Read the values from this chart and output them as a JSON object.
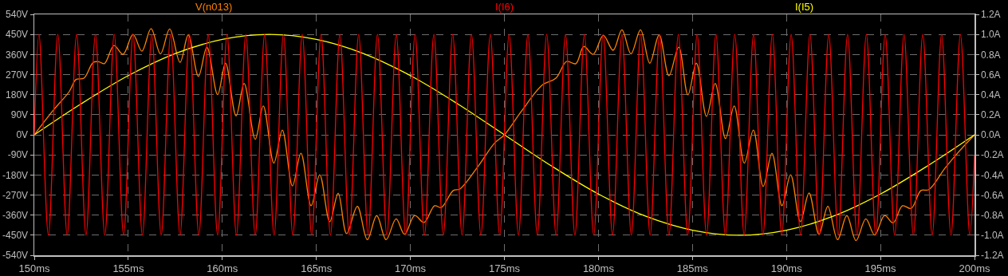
{
  "chart_data": {
    "type": "line",
    "line_style": "solid",
    "marker": "none",
    "grid": true,
    "xlim": [
      150,
      200
    ],
    "xticks": [
      {
        "value": 150,
        "label": "150ms"
      },
      {
        "value": 155,
        "label": "155ms"
      },
      {
        "value": 160,
        "label": "160ms"
      },
      {
        "value": 165,
        "label": "165ms"
      },
      {
        "value": 170,
        "label": "170ms"
      },
      {
        "value": 175,
        "label": "175ms"
      },
      {
        "value": 180,
        "label": "180ms"
      },
      {
        "value": 185,
        "label": "185ms"
      },
      {
        "value": 190,
        "label": "190ms"
      },
      {
        "value": 195,
        "label": "195ms"
      },
      {
        "value": 200,
        "label": "200ms"
      }
    ],
    "ylim": [
      -540,
      540
    ],
    "yticks": [
      {
        "value": 540,
        "label": "540V"
      },
      {
        "value": 450,
        "label": "450V"
      },
      {
        "value": 360,
        "label": "360V"
      },
      {
        "value": 270,
        "label": "270V"
      },
      {
        "value": 180,
        "label": "180V"
      },
      {
        "value": 90,
        "label": "90V"
      },
      {
        "value": 0,
        "label": "0V"
      },
      {
        "value": -90,
        "label": "-90V"
      },
      {
        "value": -180,
        "label": "-180V"
      },
      {
        "value": -270,
        "label": "-270V"
      },
      {
        "value": -360,
        "label": "-360V"
      },
      {
        "value": -450,
        "label": "-450V"
      },
      {
        "value": -540,
        "label": "-540V"
      }
    ],
    "y2lim": [
      -1.2,
      1.2
    ],
    "y2ticks": [
      {
        "value": 1.2,
        "label": "1.2A"
      },
      {
        "value": 1.0,
        "label": "1.0A"
      },
      {
        "value": 0.8,
        "label": "0.8A"
      },
      {
        "value": 0.6,
        "label": "0.6A"
      },
      {
        "value": 0.4,
        "label": "0.4A"
      },
      {
        "value": 0.2,
        "label": "0.2A"
      },
      {
        "value": 0,
        "label": "0.0A"
      },
      {
        "value": -0.2,
        "label": "-0.2A"
      },
      {
        "value": -0.4,
        "label": "-0.4A"
      },
      {
        "value": -0.6,
        "label": "-0.6A"
      },
      {
        "value": -0.8,
        "label": "-0.8A"
      },
      {
        "value": -1.0,
        "label": "-1.0A"
      },
      {
        "value": -1.2,
        "label": "-1.2A"
      }
    ],
    "series": [
      {
        "name": "V(n013)",
        "color": "#ff8000",
        "x": [
          150,
          151.02,
          151.86,
          152.22,
          152.64,
          153.14,
          153.45,
          153.73,
          154.24,
          154.72,
          155.25,
          155.72,
          156.21,
          156.71,
          157.2,
          157.75,
          158.19,
          158.73,
          159.18,
          159.75,
          160.17,
          160.73,
          161.16,
          161.75,
          162.18,
          162.74,
          163.19,
          163.73,
          164.18,
          164.72,
          165.18,
          165.71,
          166.16,
          166.61,
          167.18,
          167.71,
          168.21,
          168.71,
          169.24,
          169.69,
          170.23,
          170.72,
          171.29,
          171.64,
          172.28,
          172.63,
          173.62,
          174.47,
          175,
          175.9,
          177.03,
          177.74,
          178.31,
          178.8,
          179.22,
          179.72,
          180.26,
          180.78,
          181.25,
          181.73,
          182.24,
          182.73,
          183.23,
          183.75,
          184.27,
          184.76,
          185.21,
          185.75,
          186.21,
          186.76,
          187.22,
          187.76,
          188.24,
          188.76,
          189.23,
          189.76,
          190.22,
          190.74,
          191.2,
          191.73,
          192.2,
          192.72,
          193.21,
          193.7,
          194.22,
          194.69,
          195.22,
          195.67,
          196.17,
          196.63,
          197.15,
          197.57,
          198.42,
          199.12,
          200
        ],
        "values": [
          0,
          111,
          194,
          248,
          254,
          325,
          327,
          319,
          400,
          361,
          450,
          375,
          476,
          363,
          474,
          325,
          448,
          262,
          393,
          180,
          321,
          85,
          230,
          -20,
          129,
          -127,
          21,
          -229,
          -83,
          -318,
          -179,
          -389,
          -262,
          -443,
          -321,
          -470,
          -362,
          -470,
          -377,
          -446,
          -362,
          -393,
          -318,
          -326,
          -250,
          -243,
          -139,
          -38,
          0,
          105,
          224,
          254,
          329,
          319,
          396,
          361,
          446,
          379,
          471,
          363,
          471,
          321,
          448,
          265,
          393,
          179,
          321,
          83,
          230,
          -17,
          129,
          -127,
          21,
          -231,
          -83,
          -318,
          -179,
          -389,
          -261,
          -446,
          -321,
          -470,
          -362,
          -474,
          -377,
          -449,
          -362,
          -395,
          -318,
          -330,
          -250,
          -246,
          -151,
          -80,
          0
        ]
      },
      {
        "name": "I(I6)",
        "color": "#ff0000",
        "axis": "y2",
        "x": [
          150,
          150.25,
          150.75,
          151.25,
          151.75,
          152.25,
          152.75,
          153.25,
          153.75,
          154.25,
          154.75,
          155.25,
          155.75,
          156.25,
          156.75,
          157.25,
          157.75,
          158.25,
          158.75,
          159.25,
          159.75,
          160.25,
          160.75,
          161.25,
          161.75,
          162.25,
          162.75,
          163.25,
          163.75,
          164.25,
          164.75,
          165.25,
          165.75,
          166.25,
          166.75,
          167.25,
          167.75,
          168.25,
          168.75,
          169.25,
          169.75,
          170.25,
          170.75,
          171.25,
          171.75,
          172.25,
          172.75,
          173.25,
          173.75,
          174.25,
          174.75,
          175.25,
          175.75,
          176.25,
          176.75,
          177.25,
          177.75,
          178.25,
          178.75,
          179.25,
          179.75,
          180.25,
          180.75,
          181.25,
          181.75,
          182.25,
          182.75,
          183.25,
          183.75,
          184.25,
          184.75,
          185.25,
          185.75,
          186.25,
          186.75,
          187.25,
          187.75,
          188.25,
          188.75,
          189.25,
          189.75,
          190.25,
          190.75,
          191.25,
          191.75,
          192.25,
          192.75,
          193.25,
          193.75,
          194.25,
          194.75,
          195.25,
          195.75,
          196.25,
          196.75,
          197.25,
          197.75,
          198.25,
          198.75,
          199.25,
          199.75,
          200
        ],
        "values": [
          0,
          1,
          -1,
          1,
          -1,
          1,
          -1,
          1,
          -1,
          1,
          -1,
          1,
          -1,
          1,
          -1,
          1,
          -1,
          1,
          -1,
          1,
          -1,
          1,
          -1,
          1,
          -1,
          1,
          -1,
          1,
          -1,
          1,
          -1,
          1,
          -1,
          1,
          -1,
          1,
          -1,
          1,
          -1,
          1,
          -1,
          1,
          -1,
          1,
          -1,
          1,
          -1,
          1,
          -1,
          1,
          -1,
          1,
          -1,
          1,
          -1,
          1,
          -1,
          1,
          -1,
          1,
          -1,
          1,
          -1,
          1,
          -1,
          1,
          -1,
          1,
          -1,
          1,
          -1,
          1,
          -1,
          1,
          -1,
          1,
          -1,
          1,
          -1,
          1,
          -1,
          1,
          -1,
          1,
          -1,
          1,
          -1,
          1,
          -1,
          1,
          -1,
          1,
          -1,
          1,
          -1,
          1,
          -1,
          1,
          -1,
          1,
          -1,
          -0.2
        ]
      },
      {
        "name": "I(I5)",
        "color": "#ffff00",
        "axis": "y2",
        "x": [
          150,
          152.5,
          155,
          157.5,
          160,
          162.5,
          165,
          167.5,
          170,
          172.5,
          175,
          177.5,
          180,
          182.5,
          185,
          187.5,
          190,
          192.5,
          195,
          197.5,
          200
        ],
        "values": [
          0,
          0.31,
          0.59,
          0.81,
          0.95,
          1,
          0.95,
          0.81,
          0.59,
          0.31,
          0,
          -0.31,
          -0.59,
          -0.81,
          -0.95,
          -1,
          -0.95,
          -0.81,
          -0.59,
          -0.31,
          0
        ]
      }
    ]
  }
}
